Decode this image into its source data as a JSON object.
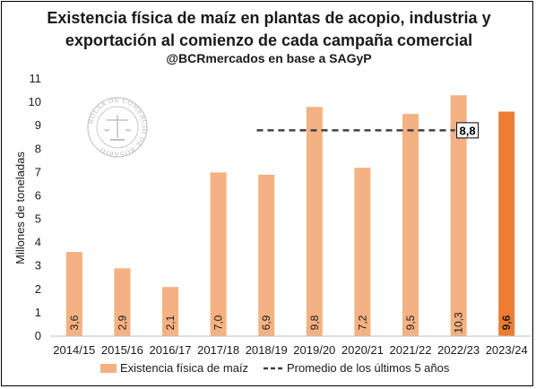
{
  "title_lines": [
    "Existencia física de maíz en plantas de acopio, industria y",
    "exportación al comienzo de cada campaña comercial"
  ],
  "subtitle": "@BCRmercados en base a SAGyP",
  "watermark": {
    "text": "BOLSA DE COMERCIO DE ROSARIO"
  },
  "chart_data": {
    "type": "bar",
    "ylabel": "Millones de toneladas",
    "xlabel": "",
    "ylim": [
      0,
      11
    ],
    "yticks": [
      0,
      1,
      2,
      3,
      4,
      5,
      6,
      7,
      8,
      9,
      10,
      11
    ],
    "grid": false,
    "legend_position": "bottom",
    "categories": [
      "2014/15",
      "2015/16",
      "2016/17",
      "2017/18",
      "2018/19",
      "2019/20",
      "2020/21",
      "2021/22",
      "2022/23",
      "2023/24"
    ],
    "series": [
      {
        "name": "Existencia física de maíz",
        "values": [
          3.6,
          2.9,
          2.1,
          7.0,
          6.9,
          9.8,
          7.2,
          9.5,
          10.3,
          9.6
        ],
        "data_labels": [
          "3,6",
          "2,9",
          "2,1",
          "7,0",
          "6,9",
          "9,8",
          "7,2",
          "9,5",
          "10,3",
          "9,6"
        ],
        "color": "#f4b183",
        "highlight_color": "#ed7d31",
        "highlight_index": 9
      }
    ],
    "reference_line": {
      "name": "Promedio de los últimos 5 años",
      "value": 8.8,
      "label": "8,8",
      "from_category": "2018/19",
      "to_category": "2022/23",
      "color": "#404040",
      "style": "dashed"
    }
  }
}
